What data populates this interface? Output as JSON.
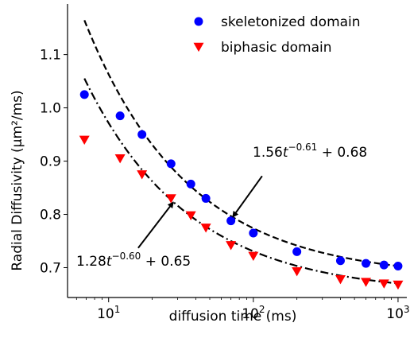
{
  "chart_data": {
    "type": "scatter",
    "xlabel": "diffusion time (ms)",
    "ylabel": "Radial Diffusivity (μm²/ms)",
    "xscale": "log",
    "xlim": [
      5.2,
      1150
    ],
    "ylim": [
      0.644,
      1.195
    ],
    "x_ticks": [
      10,
      100,
      1000
    ],
    "x_tick_labels": [
      {
        "base": "10",
        "exp": "1"
      },
      {
        "base": "10",
        "exp": "2"
      },
      {
        "base": "10",
        "exp": "3"
      }
    ],
    "y_ticks": [
      0.7,
      0.8,
      0.9,
      1.0,
      1.1
    ],
    "y_tick_labels": [
      "0.7",
      "0.8",
      "0.9",
      "1.0",
      "1.1"
    ],
    "grid": false,
    "legend_position": "top-right",
    "series": [
      {
        "name": "skeletonized domain",
        "marker": "circle",
        "color": "#0000ff",
        "x": [
          6.8,
          12,
          17,
          27,
          37,
          47,
          70,
          100,
          200,
          400,
          600,
          800,
          1000
        ],
        "y": [
          1.025,
          0.985,
          0.95,
          0.895,
          0.857,
          0.83,
          0.788,
          0.765,
          0.73,
          0.713,
          0.708,
          0.705,
          0.703
        ]
      },
      {
        "name": "biphasic domain",
        "marker": "triangle-down",
        "color": "#ff0000",
        "x": [
          6.8,
          12,
          17,
          27,
          37,
          47,
          70,
          100,
          200,
          400,
          600,
          800,
          1000
        ],
        "y": [
          0.94,
          0.905,
          0.875,
          0.83,
          0.798,
          0.775,
          0.742,
          0.722,
          0.693,
          0.678,
          0.673,
          0.67,
          0.668
        ]
      }
    ],
    "fits": [
      {
        "series": "skeletonized domain",
        "a": 1.56,
        "b": -0.61,
        "c": 0.68,
        "style": "dashed",
        "x_range": [
          6.8,
          1000
        ]
      },
      {
        "series": "biphasic domain",
        "a": 1.28,
        "b": -0.6,
        "c": 0.65,
        "style": "dashdot",
        "x_range": [
          6.8,
          1000
        ]
      }
    ],
    "annotations": [
      {
        "for": "skeletonized domain",
        "coef": "1.56",
        "var": "t",
        "exp": "−0.61",
        "tail": " + 0.68",
        "points_to": [
          72,
          0.795
        ],
        "text_from": [
          115,
          0.872
        ]
      },
      {
        "for": "biphasic domain",
        "coef": "1.28",
        "var": "t",
        "exp": "−0.60",
        "tail": " + 0.65",
        "points_to": [
          28,
          0.823
        ],
        "text_from": [
          16,
          0.737
        ]
      }
    ]
  }
}
